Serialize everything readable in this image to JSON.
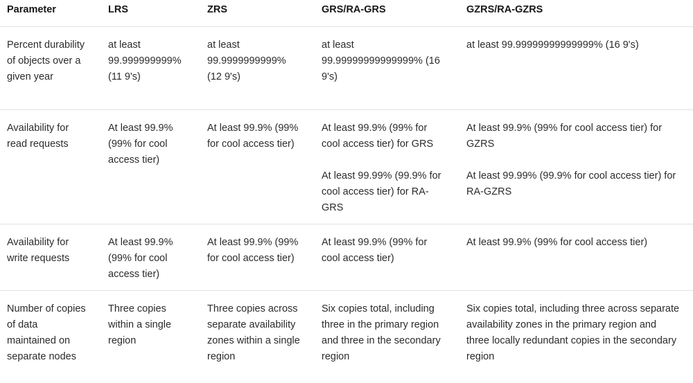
{
  "table": {
    "headers": [
      "Parameter",
      "LRS",
      "ZRS",
      "GRS/RA-GRS",
      "GZRS/RA-GZRS"
    ],
    "rows": [
      {
        "parameter": "Percent durability of objects over a given year",
        "lrs": "at least 99.999999999% (11 9's)",
        "zrs": "at least 99.9999999999% (12 9's)",
        "grs": [
          "at least 99.99999999999999% (16 9's)"
        ],
        "gzrs": [
          "at least 99.99999999999999% (16 9's)"
        ]
      },
      {
        "parameter": "Availability for read requests",
        "lrs": "At least 99.9% (99% for cool access tier)",
        "zrs": "At least 99.9% (99% for cool access tier)",
        "grs": [
          "At least 99.9% (99% for cool access tier) for GRS",
          "At least 99.99% (99.9% for cool access tier) for RA-GRS"
        ],
        "gzrs": [
          "At least 99.9% (99% for cool access tier) for GZRS",
          "At least 99.99% (99.9% for cool access tier) for RA-GZRS"
        ]
      },
      {
        "parameter": "Availability for write requests",
        "lrs": "At least 99.9% (99% for cool access tier)",
        "zrs": "At least 99.9% (99% for cool access tier)",
        "grs": [
          "At least 99.9% (99% for cool access tier)"
        ],
        "gzrs": [
          "At least 99.9% (99% for cool access tier)"
        ]
      },
      {
        "parameter": "Number of copies of data maintained on separate nodes",
        "lrs": "Three copies within a single region",
        "zrs": "Three copies across separate availability zones within a single region",
        "grs": [
          "Six copies total, including three in the primary region and three in the secondary region"
        ],
        "gzrs": [
          "Six copies total, including three across separate availability zones in the primary region and three locally redundant copies in the secondary region"
        ]
      }
    ]
  }
}
